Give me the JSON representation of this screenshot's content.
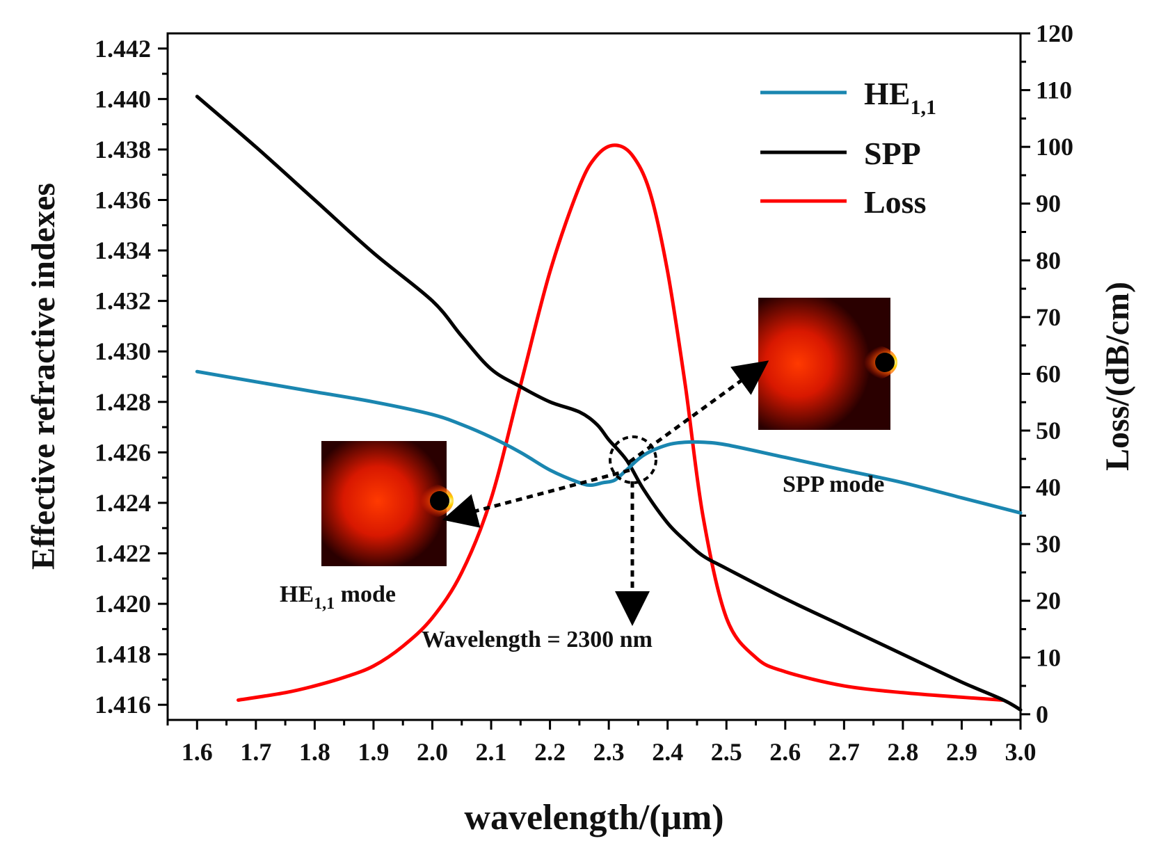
{
  "chart_data": {
    "type": "line",
    "xlabel": "wavelength/(μm)",
    "ylabel_left": "Effective refractive indexes",
    "ylabel_right": "Loss/(dB/cm)",
    "xlim": [
      1.55,
      3.0
    ],
    "ylim_left": [
      1.4154,
      1.4426
    ],
    "ylim_right": [
      -1,
      120
    ],
    "x_ticks": [
      "1.6",
      "1.7",
      "1.8",
      "1.9",
      "2.0",
      "2.1",
      "2.2",
      "2.3",
      "2.4",
      "2.5",
      "2.6",
      "2.7",
      "2.8",
      "2.9",
      "3.0"
    ],
    "y_left_ticks": [
      "1.416",
      "1.418",
      "1.420",
      "1.422",
      "1.424",
      "1.426",
      "1.428",
      "1.430",
      "1.432",
      "1.434",
      "1.436",
      "1.438",
      "1.440",
      "1.442"
    ],
    "y_right_ticks": [
      "0",
      "10",
      "20",
      "30",
      "40",
      "50",
      "60",
      "70",
      "80",
      "90",
      "100",
      "110",
      "120"
    ],
    "legend": {
      "position": "top-right",
      "entries": [
        {
          "name": "HE",
          "sub": "1,1",
          "color": "#1a86b0"
        },
        {
          "name": "SPP",
          "sub": "",
          "color": "#000000"
        },
        {
          "name": "Loss",
          "sub": "",
          "color": "#ff0000"
        }
      ]
    },
    "series": [
      {
        "name": "HE1,1",
        "axis": "left",
        "color": "#1a86b0",
        "x": [
          1.6,
          1.7,
          1.8,
          1.9,
          2.0,
          2.05,
          2.1,
          2.15,
          2.2,
          2.25,
          2.27,
          2.29,
          2.31,
          2.33,
          2.36,
          2.4,
          2.43,
          2.46,
          2.5,
          2.6,
          2.7,
          2.8,
          2.9,
          3.0
        ],
        "values": [
          1.4292,
          1.4288,
          1.4284,
          1.428,
          1.4275,
          1.4271,
          1.4266,
          1.426,
          1.4253,
          1.4248,
          1.4247,
          1.4248,
          1.4249,
          1.4253,
          1.4259,
          1.4263,
          1.4264,
          1.4264,
          1.4263,
          1.4258,
          1.4253,
          1.4248,
          1.4242,
          1.4236
        ]
      },
      {
        "name": "SPP",
        "axis": "left",
        "color": "#000000",
        "x": [
          1.6,
          1.7,
          1.8,
          1.9,
          2.0,
          2.05,
          2.1,
          2.15,
          2.2,
          2.25,
          2.28,
          2.3,
          2.33,
          2.36,
          2.4,
          2.43,
          2.46,
          2.5,
          2.6,
          2.7,
          2.8,
          2.9,
          2.97,
          3.0
        ],
        "values": [
          1.4401,
          1.4381,
          1.436,
          1.4339,
          1.432,
          1.4306,
          1.4293,
          1.4286,
          1.428,
          1.4276,
          1.4271,
          1.4265,
          1.4257,
          1.4245,
          1.4232,
          1.4225,
          1.4219,
          1.4214,
          1.4202,
          1.4191,
          1.418,
          1.4169,
          1.4162,
          1.4158
        ]
      },
      {
        "name": "Loss",
        "axis": "right",
        "color": "#ff0000",
        "x": [
          1.67,
          1.75,
          1.8,
          1.85,
          1.9,
          1.95,
          2.0,
          2.05,
          2.1,
          2.15,
          2.2,
          2.25,
          2.28,
          2.31,
          2.34,
          2.37,
          2.4,
          2.43,
          2.46,
          2.5,
          2.55,
          2.6,
          2.7,
          2.8,
          2.9,
          2.97
        ],
        "values": [
          2.5,
          3.8,
          5,
          6.5,
          8.5,
          12,
          17,
          25,
          38,
          58,
          78,
          93,
          98.5,
          100.3,
          98.5,
          92,
          78,
          58,
          35,
          17,
          10,
          7.5,
          5,
          3.8,
          3,
          2.5
        ]
      }
    ],
    "annotations": {
      "wavelength_label": "Wavelength = 2300 nm",
      "spp_mode_label": "SPP mode",
      "he_mode_label_main": "HE",
      "he_mode_label_sub": "1,1",
      "he_mode_label_suffix": " mode"
    }
  }
}
